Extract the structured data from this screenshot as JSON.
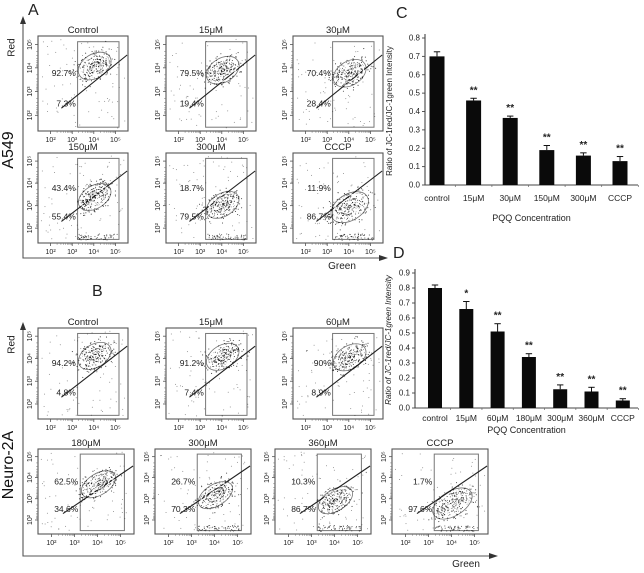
{
  "colors": {
    "bar": "#0a0a0a",
    "axis": "#333333",
    "text": "#1a1a1a"
  },
  "flow": {
    "red_axis_label": "Red",
    "green_axis_label": "Green",
    "x_ticks": [
      "10²",
      "10³",
      "10⁴",
      "10⁵"
    ],
    "y_ticks": [
      "10⁵",
      "10⁴",
      "10³",
      "10²"
    ],
    "panels": [
      {
        "label": "A",
        "cell_line": "A549",
        "rows": [
          [
            {
              "title": "Control",
              "upper_pct": "92.7%",
              "lower_pct": "7.3%"
            },
            {
              "title": "15μM",
              "upper_pct": "79.5%",
              "lower_pct": "19.4%"
            },
            {
              "title": "30μM",
              "upper_pct": "70.4%",
              "lower_pct": "28.4%"
            }
          ],
          [
            {
              "title": "150μM",
              "upper_pct": "43.4%",
              "lower_pct": "55.4%"
            },
            {
              "title": "300μM",
              "upper_pct": "18.7%",
              "lower_pct": "79.5%"
            },
            {
              "title": "CCCP",
              "upper_pct": "11.9%",
              "lower_pct": "86.7%"
            }
          ]
        ]
      },
      {
        "label": "B",
        "cell_line": "Neuro-2A",
        "rows": [
          [
            {
              "title": "Control",
              "upper_pct": "94.2%",
              "lower_pct": "4.8%"
            },
            {
              "title": "15μM",
              "upper_pct": "91.2%",
              "lower_pct": "7.4%"
            },
            {
              "title": "60μM",
              "upper_pct": "90%",
              "lower_pct": "8.9%"
            }
          ],
          [
            {
              "title": "180μM",
              "upper_pct": "62.5%",
              "lower_pct": "34.6%"
            },
            {
              "title": "300μM",
              "upper_pct": "26.7%",
              "lower_pct": "70.3%"
            },
            {
              "title": "360μM",
              "upper_pct": "10.3%",
              "lower_pct": "86.7%"
            },
            {
              "title": "CCCP",
              "upper_pct": "1.7%",
              "lower_pct": "97.6%"
            }
          ]
        ]
      }
    ]
  },
  "chart_data": [
    {
      "panel_label": "C",
      "type": "bar",
      "title": "",
      "categories": [
        "control",
        "15μM",
        "30μM",
        "150μM",
        "300μM",
        "CCCP"
      ],
      "values": [
        0.7,
        0.46,
        0.365,
        0.19,
        0.16,
        0.13
      ],
      "errors": [
        0.025,
        0.012,
        0.01,
        0.025,
        0.015,
        0.025
      ],
      "sig": [
        "",
        "**",
        "**",
        "**",
        "**",
        "**"
      ],
      "xlabel": "PQQ Concentration",
      "ylabel": "Ratio of JC-1red/JC-1green Intensity",
      "ylim": [
        0,
        0.8
      ],
      "yticks": [
        "0.0",
        "0.1",
        "0.2",
        "0.3",
        "0.4",
        "0.5",
        "0.6",
        "0.7",
        "0.8"
      ],
      "grid": false,
      "legend": "none"
    },
    {
      "panel_label": "D",
      "type": "bar",
      "title": "",
      "categories": [
        "control",
        "15μM",
        "60μM",
        "180μM",
        "300μM",
        "360μM",
        "CCCP"
      ],
      "values": [
        0.8,
        0.66,
        0.51,
        0.34,
        0.125,
        0.11,
        0.05
      ],
      "errors": [
        0.02,
        0.05,
        0.052,
        0.022,
        0.029,
        0.028,
        0.012
      ],
      "sig": [
        "",
        "*",
        "**",
        "**",
        "**",
        "**",
        "**"
      ],
      "xlabel": "PQQ Concentration",
      "ylabel": "Ratio of JC-1red/JC-1green Intensity",
      "ylim": [
        0,
        0.9
      ],
      "yticks": [
        "0.0",
        "0.1",
        "0.2",
        "0.3",
        "0.4",
        "0.5",
        "0.6",
        "0.7",
        "0.8",
        "0.9"
      ],
      "grid": false,
      "legend": "none"
    }
  ]
}
